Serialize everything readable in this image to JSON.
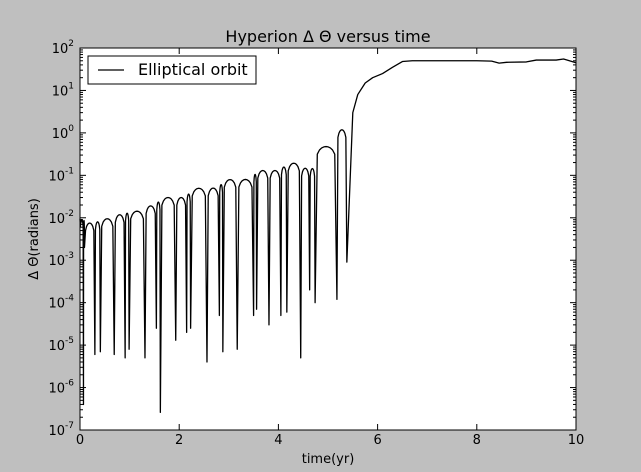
{
  "chart_data": {
    "type": "line",
    "title": "Hyperion Δ Θ versus time",
    "xlabel": "time(yr)",
    "ylabel": "Δ Θ(radians)",
    "xlim": [
      0,
      10
    ],
    "ylim_exponent": [
      -7,
      2
    ],
    "yscale": "log",
    "x_ticks": [
      0,
      2,
      4,
      6,
      8,
      10
    ],
    "y_tick_exponents": [
      -7,
      -6,
      -5,
      -4,
      -3,
      -2,
      -1,
      0,
      1,
      2
    ],
    "grid": false,
    "legend_position": "upper-left",
    "line_color": "#000000",
    "series": [
      {
        "name": "Elliptical orbit",
        "peaks": [
          [
            0.0,
            0.0095
          ],
          [
            0.23,
            0.0072
          ],
          [
            0.55,
            0.0095
          ],
          [
            0.82,
            0.012
          ],
          [
            1.13,
            0.014
          ],
          [
            1.47,
            0.02
          ],
          [
            1.75,
            0.03
          ],
          [
            2.07,
            0.03
          ],
          [
            2.4,
            0.05
          ],
          [
            2.72,
            0.05
          ],
          [
            3.03,
            0.08
          ],
          [
            3.35,
            0.08
          ],
          [
            3.67,
            0.13
          ],
          [
            3.98,
            0.13
          ],
          [
            4.28,
            0.2
          ],
          [
            4.58,
            0.14
          ],
          [
            4.82,
            0.15
          ],
          [
            5.05,
            1.0
          ],
          [
            5.3,
            1.2
          ]
        ],
        "minima": [
          [
            0.07,
            4e-07
          ],
          [
            0.09,
            0.002
          ],
          [
            0.3,
            6e-06
          ],
          [
            0.41,
            7e-06
          ],
          [
            0.69,
            6e-06
          ],
          [
            0.91,
            5e-06
          ],
          [
            0.99,
            8e-06
          ],
          [
            1.31,
            5e-06
          ],
          [
            1.54,
            2.5e-05
          ],
          [
            1.62,
            2.6e-07
          ],
          [
            1.93,
            1.3e-05
          ],
          [
            2.15,
            2e-05
          ],
          [
            2.23,
            2.5e-05
          ],
          [
            2.56,
            4e-06
          ],
          [
            2.81,
            5e-05
          ],
          [
            2.88,
            7e-06
          ],
          [
            3.17,
            8e-06
          ],
          [
            3.5,
            5e-05
          ],
          [
            3.56,
            7e-05
          ],
          [
            3.81,
            3e-05
          ],
          [
            4.05,
            5e-05
          ],
          [
            4.17,
            6e-05
          ],
          [
            4.45,
            5e-06
          ],
          [
            4.63,
            0.0002
          ],
          [
            4.74,
            0.0001
          ],
          [
            5.18,
            0.00012
          ],
          [
            5.38,
            0.0009
          ]
        ],
        "growth": [
          [
            5.5,
            3.0
          ],
          [
            5.6,
            8.0
          ],
          [
            5.75,
            15.0
          ],
          [
            5.9,
            20.0
          ],
          [
            6.1,
            25.0
          ],
          [
            6.3,
            35.0
          ],
          [
            6.5,
            48.0
          ],
          [
            6.7,
            50.0
          ]
        ],
        "plateau": [
          [
            7.0,
            50.0
          ],
          [
            7.5,
            50.0
          ],
          [
            8.0,
            50.0
          ],
          [
            8.3,
            49.0
          ],
          [
            8.45,
            44.0
          ],
          [
            8.6,
            46.0
          ],
          [
            9.0,
            47.0
          ],
          [
            9.2,
            52.0
          ],
          [
            9.6,
            52.0
          ],
          [
            9.75,
            55.0
          ],
          [
            10.0,
            45.0
          ]
        ]
      }
    ]
  }
}
